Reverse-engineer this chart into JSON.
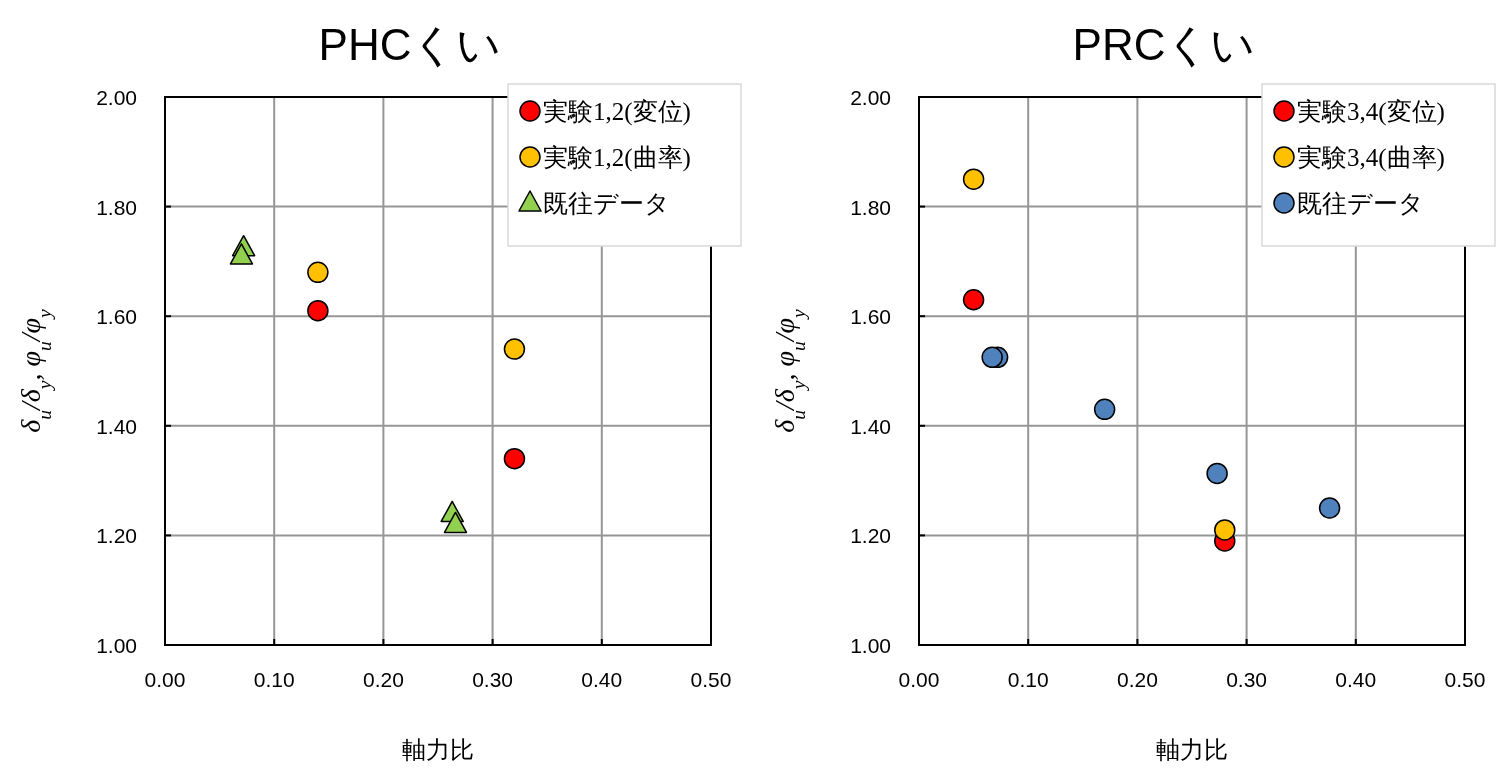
{
  "chart_data": [
    {
      "type": "scatter",
      "title": "PHCくい",
      "xlabel": "軸力比",
      "ylabel": "δ$_{u}$/δ$_{y}$, φ$_{u}$/φ$_{y}$",
      "xlim": [
        0,
        0.5
      ],
      "ylim": [
        1,
        2
      ],
      "xticks": [
        {
          "value": 0,
          "label": "0.00"
        },
        {
          "value": 0.1,
          "label": "0.10"
        },
        {
          "value": 0.2,
          "label": "0.20"
        },
        {
          "value": 0.3,
          "label": "0.30"
        },
        {
          "value": 0.4,
          "label": "0.40"
        },
        {
          "value": 0.5,
          "label": "0.50"
        }
      ],
      "yticks": [
        {
          "value": 1,
          "label": "1.00"
        },
        {
          "value": 1.2,
          "label": "1.20"
        },
        {
          "value": 1.4,
          "label": "1.40"
        },
        {
          "value": 1.6,
          "label": "1.60"
        },
        {
          "value": 1.8,
          "label": "1.80"
        },
        {
          "value": 2,
          "label": "2.00"
        }
      ],
      "grid": true,
      "legend": "top right",
      "series": [
        {
          "name": "実験1,2(変位)",
          "color": "#ff0000",
          "marker": "circle",
          "x": [
            0.14,
            0.32
          ],
          "values": [
            1.61,
            1.34
          ]
        },
        {
          "name": "実験1,2(曲率)",
          "color": "#ffc000",
          "marker": "circle",
          "x": [
            0.14,
            0.32
          ],
          "values": [
            1.68,
            1.54
          ]
        },
        {
          "name": "既往データ",
          "color": "#92d050",
          "marker": "triangle",
          "x": [
            0.072,
            0.07,
            0.263,
            0.266
          ],
          "values": [
            1.725,
            1.71,
            1.24,
            1.22
          ]
        }
      ]
    },
    {
      "type": "scatter",
      "title": "PRCくい",
      "xlabel": "軸力比",
      "ylabel": "δ$_{u}$/δ$_{y}$, φ$_{u}$/φ$_{y}$",
      "xlim": [
        0,
        0.5
      ],
      "ylim": [
        1,
        2
      ],
      "xticks": [
        {
          "value": 0,
          "label": "0.00"
        },
        {
          "value": 0.1,
          "label": "0.10"
        },
        {
          "value": 0.2,
          "label": "0.20"
        },
        {
          "value": 0.3,
          "label": "0.30"
        },
        {
          "value": 0.4,
          "label": "0.40"
        },
        {
          "value": 0.5,
          "label": "0.50"
        }
      ],
      "yticks": [
        {
          "value": 1,
          "label": "1.00"
        },
        {
          "value": 1.2,
          "label": "1.20"
        },
        {
          "value": 1.4,
          "label": "1.40"
        },
        {
          "value": 1.6,
          "label": "1.60"
        },
        {
          "value": 1.8,
          "label": "1.80"
        },
        {
          "value": 2,
          "label": "2.00"
        }
      ],
      "grid": true,
      "legend": "top right",
      "series": [
        {
          "name": "実験3,4(変位)",
          "color": "#ff0000",
          "marker": "circle",
          "x": [
            0.05,
            0.28
          ],
          "values": [
            1.63,
            1.19
          ]
        },
        {
          "name": "実験3,4(曲率)",
          "color": "#ffc000",
          "marker": "circle",
          "x": [
            0.05,
            0.28
          ],
          "values": [
            1.85,
            1.21
          ]
        },
        {
          "name": "既往データ",
          "color": "#4f81bd",
          "marker": "circle",
          "x": [
            0.072,
            0.067,
            0.17,
            0.273,
            0.376
          ],
          "values": [
            1.525,
            1.525,
            1.43,
            1.313,
            1.25
          ]
        }
      ]
    }
  ]
}
